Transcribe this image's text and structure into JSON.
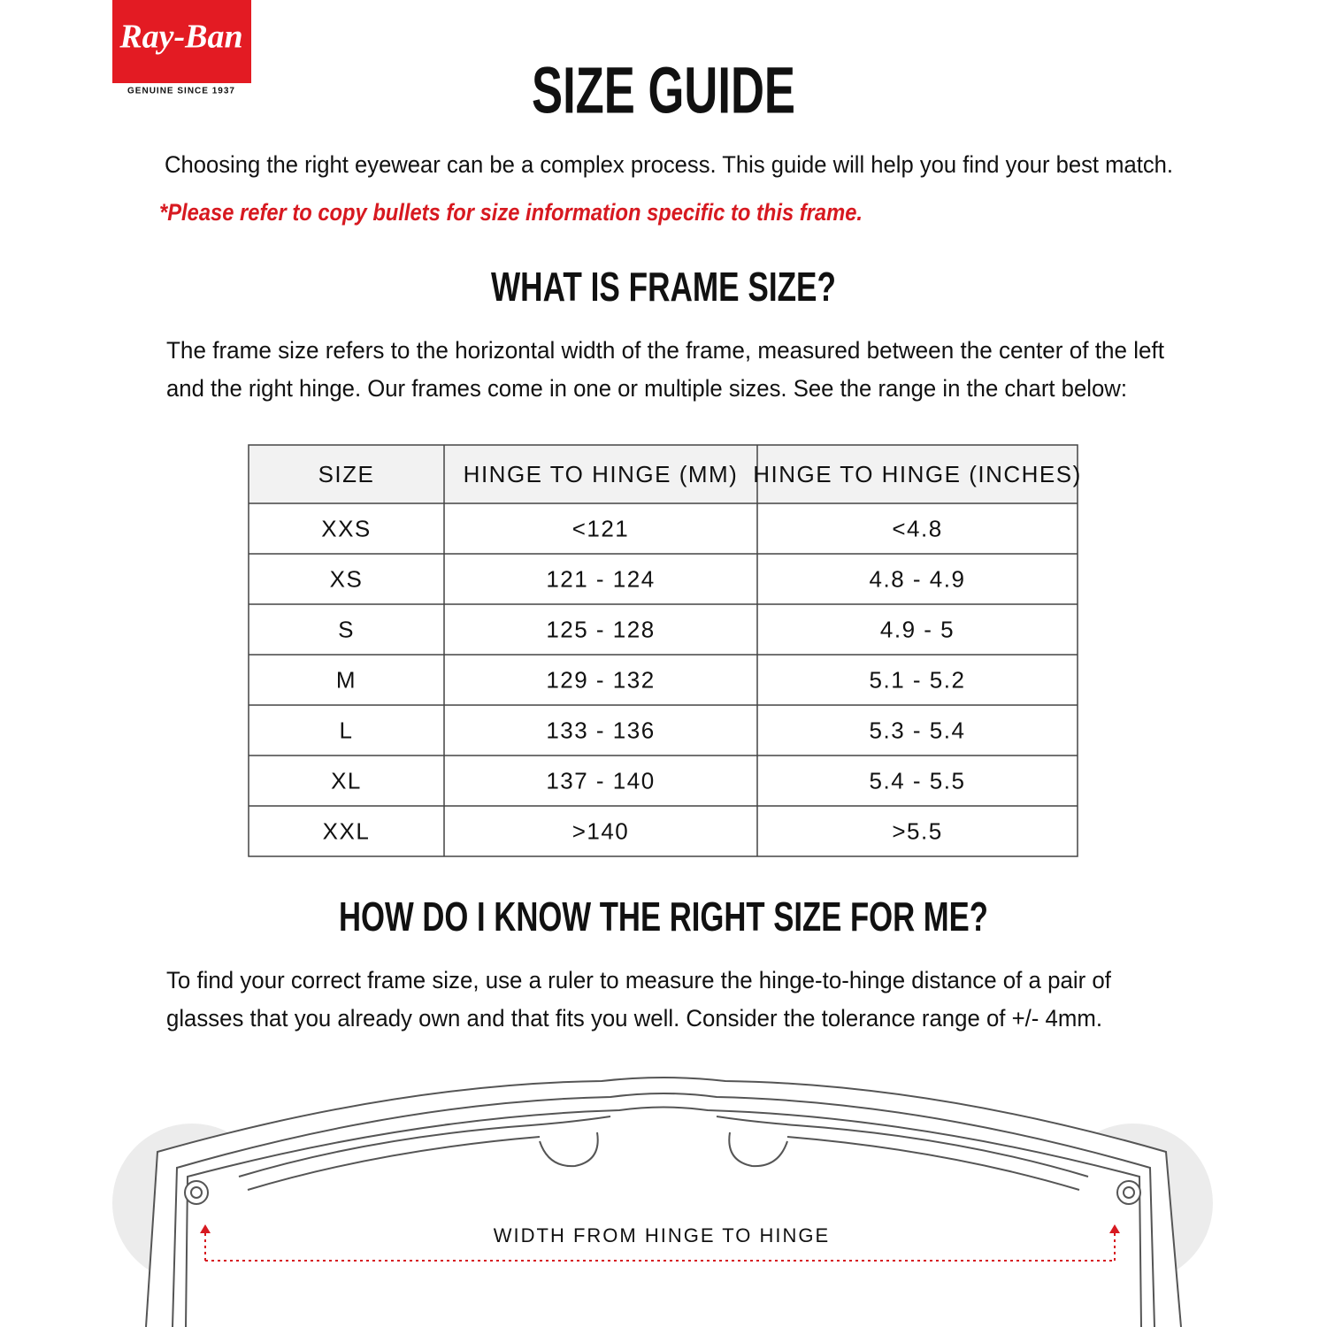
{
  "logo": {
    "brand": "Ray-Ban",
    "tagline": "GENUINE SINCE 1937"
  },
  "title": "SIZE GUIDE",
  "intro": "Choosing the right eyewear can be a complex process. This guide will help you find your best match.",
  "note": "*Please refer to copy bullets for size information specific to this frame.",
  "section1": {
    "heading": "WHAT IS FRAME SIZE?",
    "lines": [
      "The frame size refers to the horizontal width of the frame, measured between the center of the left",
      "and the right hinge. Our frames come in one or multiple sizes. See the range in the chart below:"
    ]
  },
  "table": {
    "header": [
      "SIZE",
      "HINGE TO HINGE (MM)",
      "HINGE TO HINGE (INCHES)"
    ],
    "rows": [
      [
        "XXS",
        "<121",
        "<4.8"
      ],
      [
        "XS",
        "121 - 124",
        "4.8 - 4.9"
      ],
      [
        "S",
        "125 - 128",
        "4.9 - 5"
      ],
      [
        "M",
        "129 - 132",
        "5.1 - 5.2"
      ],
      [
        "L",
        "133 - 136",
        "5.3 - 5.4"
      ],
      [
        "XL",
        "137 - 140",
        "5.4 - 5.5"
      ],
      [
        "XXL",
        ">140",
        ">5.5"
      ]
    ]
  },
  "section2": {
    "heading": "HOW DO I KNOW THE RIGHT SIZE FOR ME?",
    "lines": [
      "To find your correct frame size, use a ruler to measure the hinge-to-hinge distance of a pair of",
      "glasses that you already own and that fits you well. Consider the tolerance range of +/- 4mm."
    ]
  },
  "diagram_label": "WIDTH FROM HINGE TO HINGE"
}
